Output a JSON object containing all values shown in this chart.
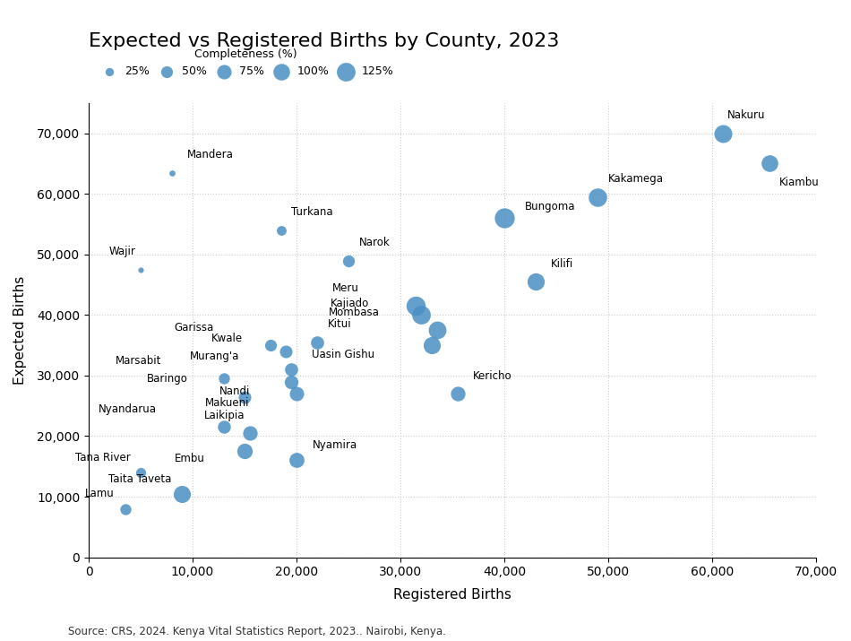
{
  "title": "Expected vs Registered Births by County, 2023",
  "xlabel": "Registered Births",
  "ylabel": "Expected Births",
  "source": "Source: CRS, 2024. Kenya Vital Statistics Report, 2023.. Nairobi, Kenya.",
  "counties": [
    {
      "name": "Nakuru",
      "reg": 61000,
      "exp": 70000,
      "completeness": 115
    },
    {
      "name": "Kiambu",
      "reg": 65500,
      "exp": 65000,
      "completeness": 100
    },
    {
      "name": "Kakamega",
      "reg": 49000,
      "exp": 59500,
      "completeness": 122
    },
    {
      "name": "Bungoma",
      "reg": 40000,
      "exp": 56000,
      "completeness": 143
    },
    {
      "name": "Mandera",
      "reg": 8000,
      "exp": 63500,
      "completeness": 13
    },
    {
      "name": "Turkana",
      "reg": 18500,
      "exp": 54000,
      "completeness": 34
    },
    {
      "name": "Narok",
      "reg": 25000,
      "exp": 49000,
      "completeness": 51
    },
    {
      "name": "Kilifi",
      "reg": 43000,
      "exp": 45500,
      "completeness": 107
    },
    {
      "name": "Wajir",
      "reg": 5000,
      "exp": 47500,
      "completeness": 11
    },
    {
      "name": "Meru",
      "reg": 31500,
      "exp": 41500,
      "completeness": 132
    },
    {
      "name": "Kajiado",
      "reg": 32000,
      "exp": 40000,
      "completeness": 125
    },
    {
      "name": "Mombasa",
      "reg": 33500,
      "exp": 37500,
      "completeness": 113
    },
    {
      "name": "Uasin Gishu",
      "reg": 33000,
      "exp": 35000,
      "completeness": 106
    },
    {
      "name": "Kitui",
      "reg": 22000,
      "exp": 35500,
      "completeness": 62
    },
    {
      "name": "Garissa",
      "reg": 17500,
      "exp": 35000,
      "completeness": 50
    },
    {
      "name": "Kwale",
      "reg": 19000,
      "exp": 34000,
      "completeness": 57
    },
    {
      "name": "Kericho",
      "reg": 35500,
      "exp": 27000,
      "completeness": 77
    },
    {
      "name": "Murang'a",
      "reg": 19500,
      "exp": 31000,
      "completeness": 62
    },
    {
      "name": "Marsabit",
      "reg": 13000,
      "exp": 29500,
      "completeness": 44
    },
    {
      "name": "Nandi",
      "reg": 19500,
      "exp": 29000,
      "completeness": 68
    },
    {
      "name": "Makueni",
      "reg": 20000,
      "exp": 27000,
      "completeness": 74
    },
    {
      "name": "Baringo",
      "reg": 15000,
      "exp": 26500,
      "completeness": 57
    },
    {
      "name": "Nyandarua",
      "reg": 13000,
      "exp": 21500,
      "completeness": 60
    },
    {
      "name": "Laikipia",
      "reg": 15500,
      "exp": 20500,
      "completeness": 76
    },
    {
      "name": "Embu",
      "reg": 15000,
      "exp": 17500,
      "completeness": 86
    },
    {
      "name": "Nyamira",
      "reg": 20000,
      "exp": 16000,
      "completeness": 81
    },
    {
      "name": "Tana River",
      "reg": 5000,
      "exp": 14000,
      "completeness": 36
    },
    {
      "name": "Taita Taveta",
      "reg": 9000,
      "exp": 10500,
      "completeness": 105
    },
    {
      "name": "Lamu",
      "reg": 3500,
      "exp": 8000,
      "completeness": 44
    }
  ],
  "bubble_color": "#4a90c4",
  "bubble_alpha": 0.85,
  "xlim": [
    0,
    70000
  ],
  "ylim": [
    0,
    75000
  ],
  "xtick_step": 10000,
  "ytick_step": 10000,
  "legend_completeness": [
    25,
    50,
    75,
    100,
    125
  ],
  "legend_title": "Completeness (%)",
  "background_color": "#ffffff",
  "grid_color": "#cccccc",
  "title_fontsize": 16,
  "label_fontsize": 11,
  "annotation_fontsize": 8.5,
  "size_scale": 180
}
